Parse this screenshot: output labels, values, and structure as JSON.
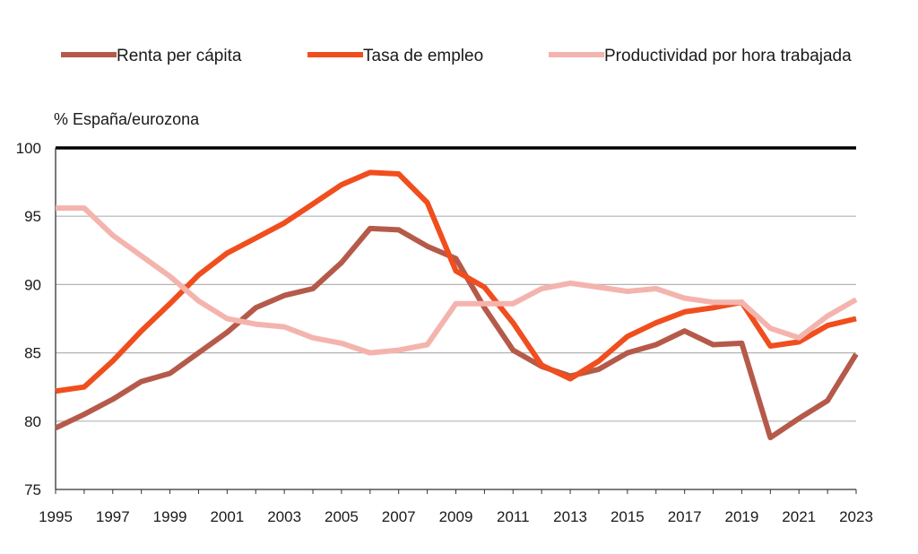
{
  "chart_data": {
    "type": "line",
    "title": "",
    "ylabel": "% España/eurozona",
    "xlabel": "",
    "ylim": [
      75,
      100
    ],
    "yticks": [
      75,
      80,
      85,
      90,
      95,
      100
    ],
    "xlim": [
      1995,
      2023
    ],
    "xtick_labels": [
      "1995",
      "1997",
      "1999",
      "2001",
      "2003",
      "2005",
      "2007",
      "2009",
      "2011",
      "2013",
      "2015",
      "2017",
      "2019",
      "2021",
      "2023"
    ],
    "grid": true,
    "legend_position": "top",
    "x": [
      1995,
      1996,
      1997,
      1998,
      1999,
      2000,
      2001,
      2002,
      2003,
      2004,
      2005,
      2006,
      2007,
      2008,
      2009,
      2010,
      2011,
      2012,
      2013,
      2014,
      2015,
      2016,
      2017,
      2018,
      2019,
      2020,
      2021,
      2022,
      2023
    ],
    "series": [
      {
        "name": "Renta per cápita",
        "color": "#b55a4a",
        "values": [
          79.5,
          80.5,
          81.6,
          82.9,
          83.5,
          85.0,
          86.5,
          88.3,
          89.2,
          89.7,
          91.6,
          94.1,
          94.0,
          92.8,
          91.9,
          88.3,
          85.2,
          84.0,
          83.3,
          83.8,
          85.0,
          85.6,
          86.6,
          85.6,
          85.7,
          78.8,
          80.2,
          81.5,
          84.9
        ]
      },
      {
        "name": "Tasa de empleo",
        "color": "#f04e1e",
        "values": [
          82.2,
          82.5,
          84.4,
          86.6,
          88.6,
          90.7,
          92.3,
          93.4,
          94.5,
          95.9,
          97.3,
          98.2,
          98.1,
          96.0,
          91.0,
          89.8,
          87.2,
          84.1,
          83.1,
          84.4,
          86.2,
          87.2,
          88.0,
          88.3,
          88.7,
          85.5,
          85.8,
          87.0,
          87.5
        ]
      },
      {
        "name": "Productividad por hora trabajada",
        "color": "#f4b4ae",
        "values": [
          95.6,
          95.6,
          93.6,
          92.1,
          90.6,
          88.8,
          87.5,
          87.1,
          86.9,
          86.1,
          85.7,
          85.0,
          85.2,
          85.6,
          88.6,
          88.6,
          88.6,
          89.7,
          90.1,
          89.8,
          89.5,
          89.7,
          89.0,
          88.7,
          88.7,
          86.8,
          86.1,
          87.7,
          88.9
        ]
      }
    ],
    "reference_line": {
      "value": 100,
      "color": "#000000"
    }
  }
}
